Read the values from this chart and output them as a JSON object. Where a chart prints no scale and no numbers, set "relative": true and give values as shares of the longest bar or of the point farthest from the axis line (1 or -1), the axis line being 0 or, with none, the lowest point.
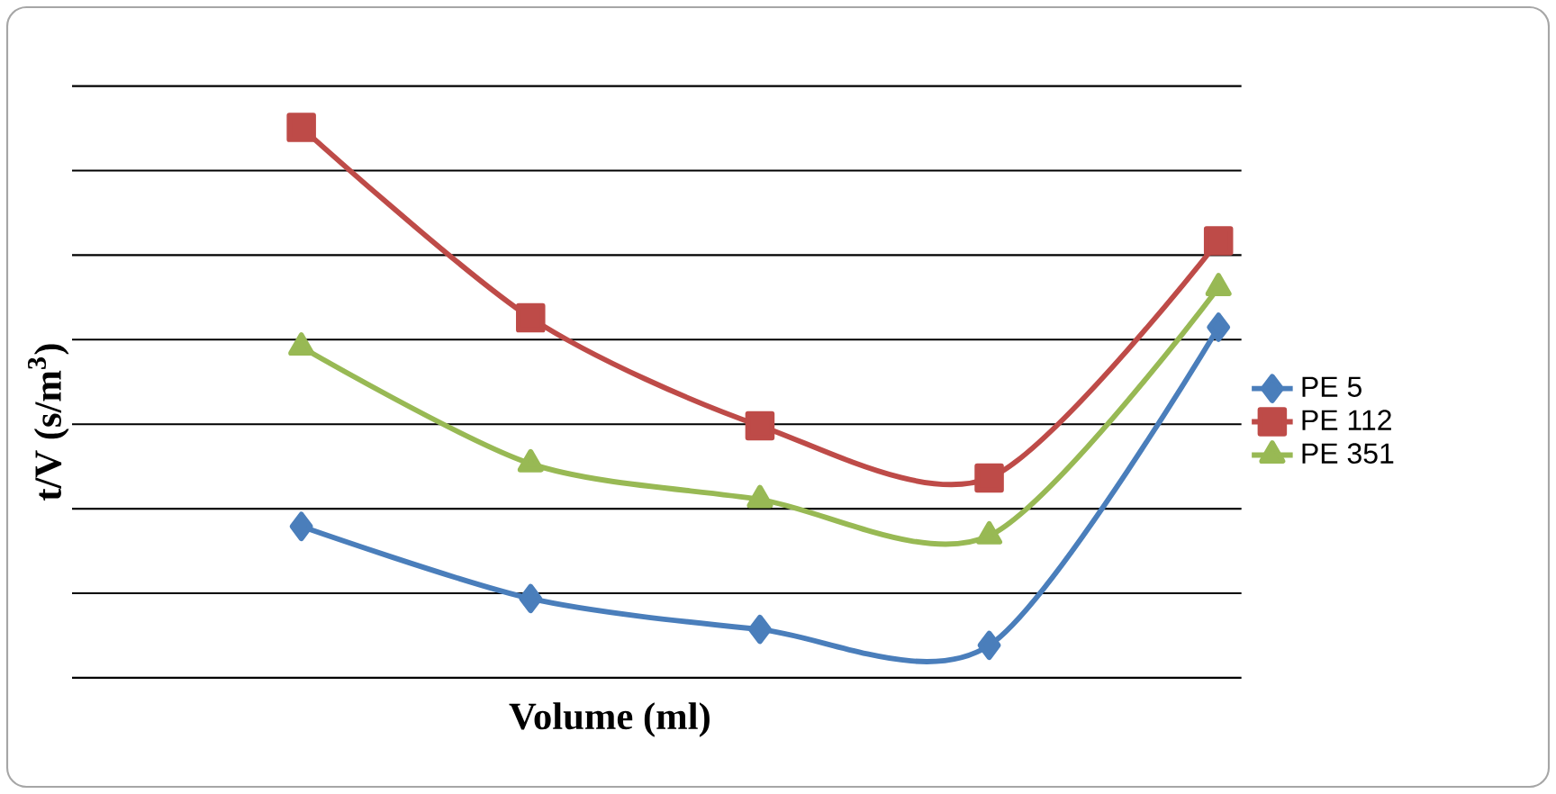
{
  "chart_data": {
    "type": "line",
    "relative": true,
    "xlabel": "Volume (ml)",
    "ylabel": "t/V (s/m$^{3}$)",
    "categories": [
      null,
      null,
      null,
      null,
      null
    ],
    "grid": "y",
    "legend": "right",
    "series": [
      {
        "name": "PE 5",
        "color": "#4a7ebb",
        "marker": "diamond",
        "values": [
          0.275,
          0.144,
          0.088,
          0.059,
          0.637
        ]
      },
      {
        "name": "PE 112",
        "color": "#be4b48",
        "marker": "square",
        "values": [
          1,
          0.654,
          0.458,
          0.363,
          0.794
        ]
      },
      {
        "name": "PE 351",
        "color": "#98b954",
        "marker": "triangle",
        "values": [
          0.601,
          0.389,
          0.324,
          0.258,
          0.709
        ]
      }
    ]
  }
}
